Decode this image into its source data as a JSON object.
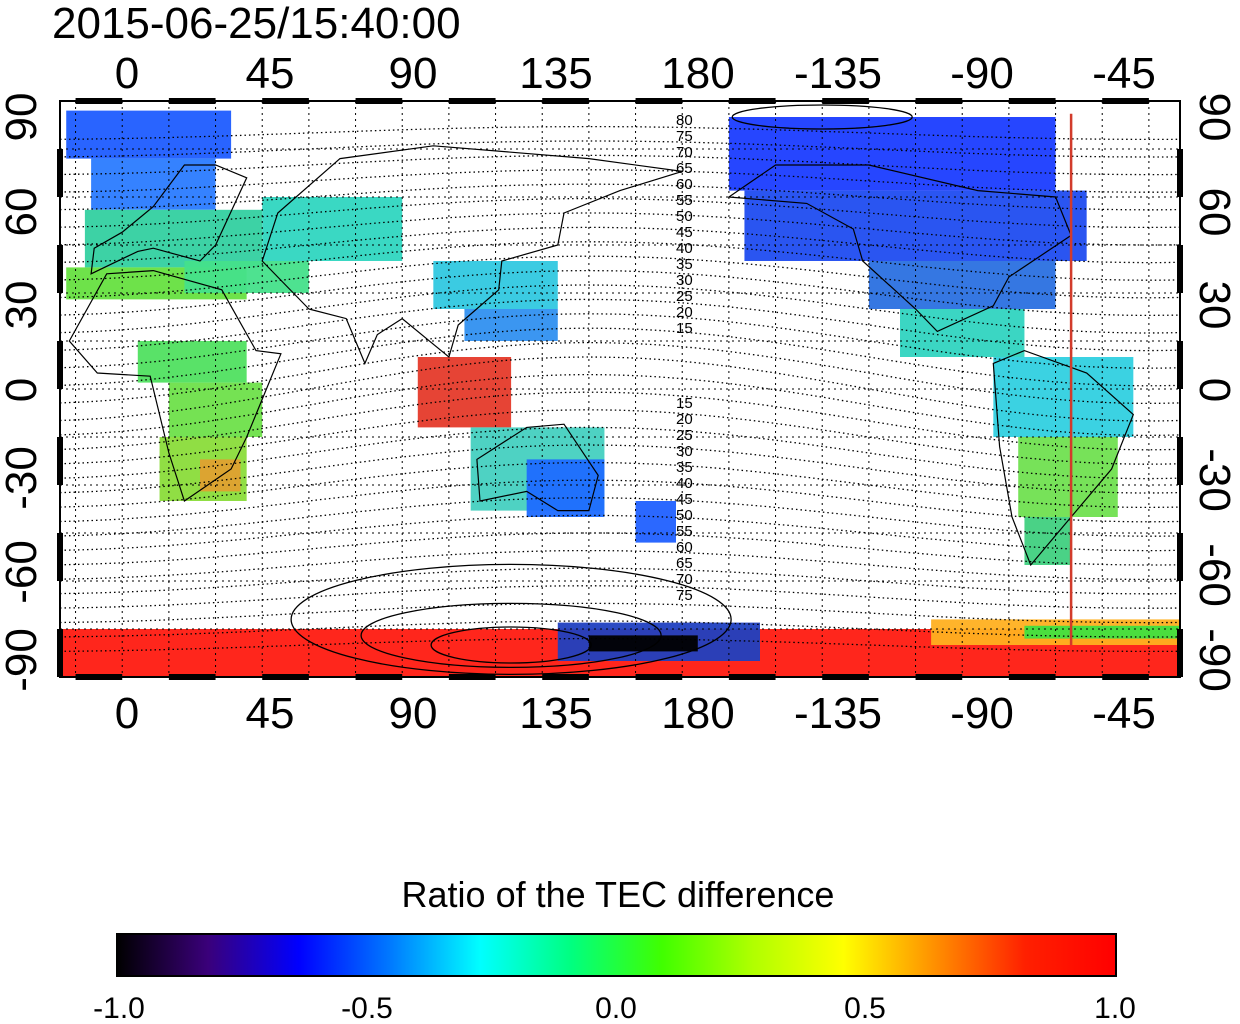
{
  "timestamp": "2015-06-25/15:40:00",
  "map": {
    "projection": "cylindrical, longitude 0°..360° (displayed -20..340)",
    "lon_ticks": [
      "0",
      "45",
      "90",
      "135",
      "180",
      "-135",
      "-90",
      "-45"
    ],
    "lat_ticks": [
      "90",
      "60",
      "30",
      "0",
      "-30",
      "-60",
      "-90"
    ],
    "grid": "dotted every 15°",
    "marker_line_longitude": -55,
    "marker_line_color": "#d23b2b",
    "contour_labels_north": [
      "80",
      "75",
      "70",
      "65",
      "60",
      "55",
      "50",
      "45",
      "40",
      "35",
      "30",
      "25",
      "20",
      "15"
    ],
    "contour_labels_south": [
      "15",
      "20",
      "25",
      "30",
      "35",
      "40",
      "45",
      "50",
      "55",
      "60",
      "65",
      "70",
      "75"
    ]
  },
  "colorbar": {
    "title": "Ratio of the TEC difference",
    "range": [
      -1.0,
      1.0
    ],
    "ticks": [
      "-1.0",
      "-0.5",
      "0.0",
      "0.5",
      "1.0"
    ],
    "stops": [
      "#000000",
      "#3a007a",
      "#0000ff",
      "#0078ff",
      "#00ffff",
      "#00ff80",
      "#40ff00",
      "#b0ff00",
      "#ffff00",
      "#ff9000",
      "#ff2000",
      "#ff0000"
    ]
  }
}
